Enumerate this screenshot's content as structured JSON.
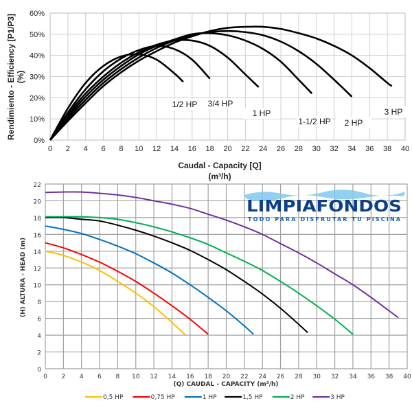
{
  "chart_data": [
    {
      "type": "line",
      "title": "",
      "xlabel": "Caudal - Capacity [Q]",
      "xlabel_unit": "(m³/h)",
      "ylabel": "Rendimiento - Efficiency [P1/P3]",
      "ylabel_unit": "(%)",
      "xlim": [
        0,
        40
      ],
      "ylim": [
        0,
        60
      ],
      "xticks": [
        "0",
        "2",
        "4",
        "6",
        "8",
        "10",
        "12",
        "14",
        "16",
        "18",
        "20",
        "22",
        "24",
        "26",
        "28",
        "30",
        "32",
        "34",
        "36",
        "38",
        "40"
      ],
      "yticks": [
        "0%",
        "10%",
        "20%",
        "30%",
        "40%",
        "50%",
        "60%"
      ],
      "grid": true,
      "series": [
        {
          "name": "1/2 HP",
          "color": "#000000",
          "x": [
            0,
            2,
            4,
            6,
            8,
            10,
            12,
            14,
            15
          ],
          "y": [
            0,
            15,
            27,
            35,
            39.5,
            40.5,
            38,
            31.5,
            27.5
          ]
        },
        {
          "name": "3/4 HP",
          "color": "#000000",
          "x": [
            0,
            2,
            4,
            6,
            8,
            10,
            12,
            14,
            16,
            18
          ],
          "y": [
            0,
            13,
            24,
            32.5,
            38.5,
            42.5,
            44.5,
            43,
            38,
            29
          ]
        },
        {
          "name": "1 HP",
          "color": "#000000",
          "x": [
            0,
            2,
            4,
            6,
            8,
            10,
            12,
            14,
            16,
            18,
            20,
            22,
            23.5
          ],
          "y": [
            0,
            12,
            22,
            30,
            36.5,
            41.5,
            45,
            47,
            47,
            44.5,
            39,
            31,
            25
          ]
        },
        {
          "name": "1-1/2 HP",
          "color": "#000000",
          "x": [
            0,
            2,
            4,
            6,
            8,
            10,
            12,
            14,
            16,
            18,
            20,
            22,
            24,
            26,
            28,
            29.5
          ],
          "y": [
            0,
            11,
            20.5,
            28.5,
            35,
            40.5,
            44.5,
            47.5,
            50,
            50.5,
            49.5,
            47,
            43,
            37,
            28.5,
            22
          ]
        },
        {
          "name": "2 HP",
          "color": "#000000",
          "x": [
            0,
            2,
            4,
            6,
            8,
            10,
            12,
            14,
            16,
            18,
            20,
            22,
            24,
            26,
            28,
            30,
            32,
            34
          ],
          "y": [
            0,
            10,
            19,
            27,
            33.5,
            39,
            43.5,
            47,
            49.5,
            51,
            51.5,
            51,
            49.5,
            46.5,
            42,
            36,
            28.5,
            20.5
          ]
        },
        {
          "name": "3 HP",
          "color": "#000000",
          "x": [
            0,
            2,
            4,
            6,
            8,
            10,
            12,
            14,
            16,
            18,
            20,
            22,
            24,
            26,
            28,
            30,
            32,
            34,
            36,
            38,
            38.5
          ],
          "y": [
            0,
            9,
            17.5,
            25.5,
            32,
            37.5,
            42,
            46,
            49,
            51.5,
            53,
            53.5,
            53.5,
            52.5,
            50.5,
            48,
            44.5,
            40,
            34,
            27,
            25.5
          ]
        }
      ]
    },
    {
      "type": "line",
      "title": "",
      "xlabel": "(Q)  CAUDAL - CAPACITY (m³/h)",
      "ylabel": "(H)  ALTURA - HEAD (m)",
      "xlim": [
        0,
        40
      ],
      "ylim": [
        0,
        22
      ],
      "xticks": [
        "0",
        "2",
        "4",
        "6",
        "8",
        "10",
        "12",
        "14",
        "16",
        "18",
        "20",
        "22",
        "24",
        "26",
        "28",
        "30",
        "32",
        "34",
        "36",
        "38",
        "40"
      ],
      "yticks": [
        "0",
        "2",
        "4",
        "6",
        "8",
        "10",
        "12",
        "14",
        "16",
        "18",
        "20",
        "22"
      ],
      "grid": true,
      "legend_position": "bottom",
      "series": [
        {
          "name": "0,5 HP",
          "color": "#FFC000",
          "x": [
            0,
            2,
            4,
            6,
            8,
            10,
            12,
            14,
            15.5
          ],
          "y": [
            14,
            13.5,
            12.7,
            11.7,
            10.4,
            9,
            7.4,
            5.5,
            4
          ]
        },
        {
          "name": "0,75 HP",
          "color": "#FF0000",
          "x": [
            0,
            2,
            4,
            6,
            8,
            10,
            12,
            14,
            16,
            18
          ],
          "y": [
            15,
            14.4,
            13.6,
            12.7,
            11.6,
            10.4,
            9,
            7.5,
            5.9,
            4.1
          ]
        },
        {
          "name": "1 HP",
          "color": "#0070C0",
          "x": [
            0,
            2,
            4,
            6,
            8,
            10,
            12,
            14,
            16,
            18,
            20,
            22,
            23
          ],
          "y": [
            17,
            16.6,
            16.1,
            15.4,
            14.6,
            13.7,
            12.6,
            11.4,
            10,
            8.5,
            6.9,
            5.1,
            4.1
          ]
        },
        {
          "name": "1,5 HP",
          "color": "#000000",
          "x": [
            0,
            2,
            4,
            6,
            8,
            10,
            12,
            14,
            16,
            18,
            20,
            22,
            24,
            26,
            28,
            29
          ],
          "y": [
            18,
            18,
            17.8,
            17.6,
            17.1,
            16.5,
            15.8,
            15,
            14.1,
            13,
            11.8,
            10.4,
            8.9,
            7.2,
            5.3,
            4.3
          ]
        },
        {
          "name": "2 HP",
          "color": "#00B050",
          "x": [
            0,
            2,
            4,
            6,
            8,
            10,
            12,
            14,
            16,
            18,
            20,
            22,
            24,
            26,
            28,
            30,
            32,
            34
          ],
          "y": [
            18.1,
            18.1,
            18.1,
            18,
            17.8,
            17.4,
            16.9,
            16.3,
            15.6,
            14.8,
            13.8,
            12.8,
            11.7,
            10.4,
            9,
            7.5,
            5.9,
            4.1
          ]
        },
        {
          "name": "3 HP",
          "color": "#7030A0",
          "x": [
            0,
            2,
            4,
            6,
            8,
            10,
            12,
            14,
            16,
            18,
            20,
            22,
            24,
            26,
            28,
            30,
            32,
            34,
            36,
            38,
            39
          ],
          "y": [
            21,
            21.05,
            21.05,
            20.9,
            20.7,
            20.4,
            20,
            19.6,
            19.1,
            18.4,
            17.7,
            16.9,
            16,
            14.9,
            13.8,
            12.6,
            11.3,
            10,
            8.5,
            6.9,
            6.1
          ]
        }
      ]
    }
  ],
  "logo": {
    "name": "LIMPIAFONDOS",
    "tagline": "TODO PARA DISFRUTAR TU PISCINA",
    "color": "#0B3F8C"
  }
}
